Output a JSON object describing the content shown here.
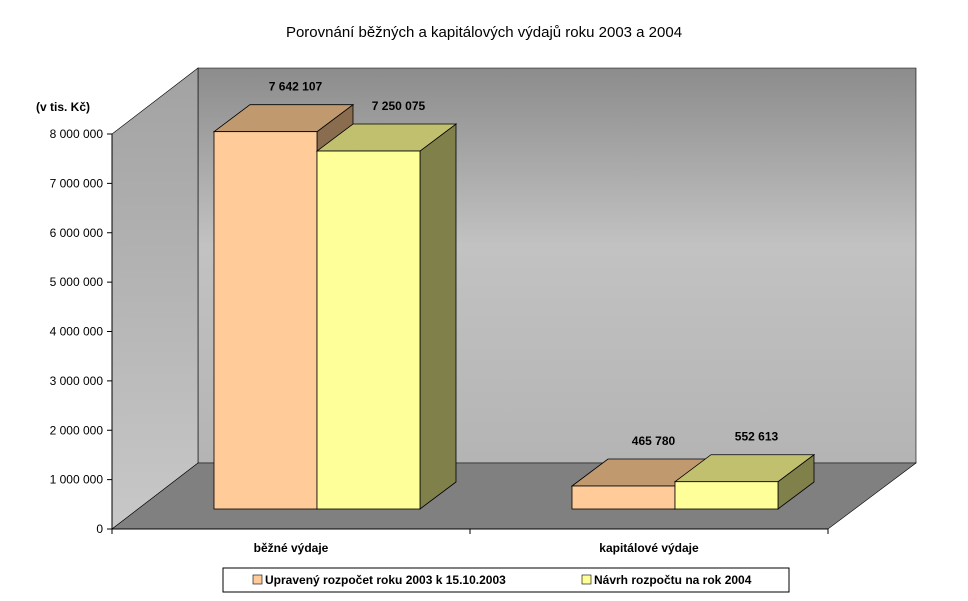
{
  "chart_data": {
    "type": "bar",
    "title": "Porovnání běžných a kapitálových výdajů roku 2003 a 2004",
    "unit_label": "(v tis. Kč)",
    "categories": [
      "běžné výdaje",
      "kapitálové výdaje"
    ],
    "series": [
      {
        "name": "Upravený rozpočet roku 2003 k 15.10.2003",
        "values": [
          7642107,
          465780
        ],
        "labels": [
          "7 642 107",
          "465 780"
        ],
        "color": "#FFCC99",
        "top": "#C0996F",
        "side": "#8A6D4E"
      },
      {
        "name": "Návrh rozpočtu na rok 2004",
        "values": [
          7250075,
          552613
        ],
        "labels": [
          "7 250 075",
          "552 613"
        ],
        "color": "#FFFF99",
        "top": "#C0C06F",
        "side": "#80804A"
      }
    ],
    "ylim": [
      0,
      8000000
    ],
    "yticks": [
      0,
      1000000,
      2000000,
      3000000,
      4000000,
      5000000,
      6000000,
      7000000,
      8000000
    ],
    "ytick_labels": [
      "0",
      "1 000 000",
      "2 000 000",
      "3 000 000",
      "4 000 000",
      "5 000 000",
      "6 000 000",
      "7 000 000",
      "8 000 000"
    ],
    "legend_position": "bottom",
    "grid": false,
    "style": "3d"
  }
}
